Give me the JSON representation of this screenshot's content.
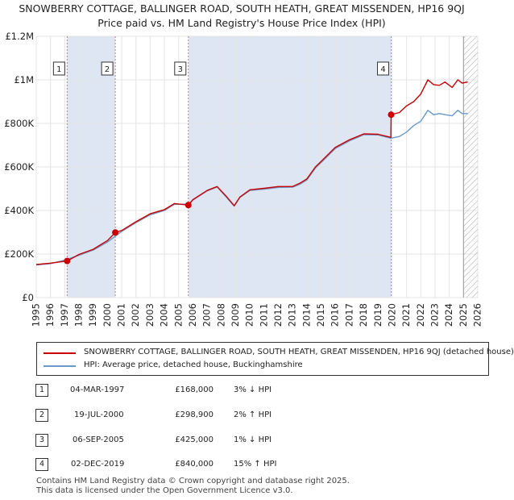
{
  "header": {
    "title": "SNOWBERRY COTTAGE, BALLINGER ROAD, SOUTH HEATH, GREAT MISSENDEN, HP16 9QJ",
    "subtitle": "Price paid vs. HM Land Registry's House Price Index (HPI)"
  },
  "chart_data": {
    "type": "line",
    "title": "SNOWBERRY COTTAGE, BALLINGER ROAD, SOUTH HEATH, GREAT MISSENDEN, HP16 9QJ",
    "subtitle": "Price paid vs. HM Land Registry's House Price Index (HPI)",
    "xlabel": "",
    "ylabel": "",
    "xlim": [
      1995,
      2026
    ],
    "ylim": [
      0,
      1200000
    ],
    "x_ticks": [
      "1995",
      "1996",
      "1997",
      "1998",
      "1999",
      "2000",
      "2001",
      "2002",
      "2003",
      "2004",
      "2005",
      "2006",
      "2007",
      "2008",
      "2009",
      "2010",
      "2011",
      "2012",
      "2013",
      "2014",
      "2015",
      "2016",
      "2017",
      "2018",
      "2019",
      "2020",
      "2021",
      "2022",
      "2023",
      "2024",
      "2025",
      "2026"
    ],
    "y_ticks": [
      {
        "value": 0,
        "label": "£0"
      },
      {
        "value": 200000,
        "label": "£200K"
      },
      {
        "value": 400000,
        "label": "£400K"
      },
      {
        "value": 600000,
        "label": "£600K"
      },
      {
        "value": 800000,
        "label": "£800K"
      },
      {
        "value": 1000000,
        "label": "£1M"
      },
      {
        "value": 1200000,
        "label": "£1.2M"
      }
    ],
    "grid": true,
    "hatched_from": 2025.0,
    "colors": {
      "property": "#cc0000",
      "hpi": "#6699cc",
      "shade": "#dde6f2",
      "marker_line": "#e07070"
    },
    "shaded_ranges": [
      [
        1997.17,
        2000.55
      ],
      [
        2005.68,
        2019.92
      ]
    ],
    "series": [
      {
        "name": "SNOWBERRY COTTAGE, BALLINGER ROAD, SOUTH HEATH, GREAT MISSENDEN, HP16 9QJ (detached house)",
        "color": "#cc0000",
        "x": [
          1995.0,
          1996.0,
          1997.17,
          1998.0,
          1999.0,
          2000.0,
          2000.55,
          2001.0,
          2002.0,
          2003.0,
          2004.0,
          2004.7,
          2005.68,
          2006.0,
          2007.0,
          2007.7,
          2008.3,
          2008.9,
          2009.3,
          2010.0,
          2011.0,
          2012.0,
          2013.0,
          2013.5,
          2014.0,
          2014.6,
          2015.0,
          2016.0,
          2017.0,
          2018.0,
          2019.0,
          2019.9,
          2019.92,
          2020.5,
          2021.0,
          2021.5,
          2022.0,
          2022.5,
          2022.9,
          2023.3,
          2023.7,
          2024.2,
          2024.6,
          2024.9,
          2025.3
        ],
        "y": [
          152000,
          158000,
          168000,
          198000,
          222000,
          262000,
          298900,
          308000,
          348000,
          385000,
          404000,
          432000,
          425000,
          450000,
          492000,
          510000,
          468000,
          422000,
          462000,
          495000,
          502000,
          510000,
          510000,
          525000,
          545000,
          600000,
          625000,
          690000,
          725000,
          752000,
          750000,
          736000,
          840000,
          850000,
          880000,
          900000,
          935000,
          1000000,
          978000,
          975000,
          990000,
          965000,
          1000000,
          985000,
          990000
        ]
      },
      {
        "name": "HPI: Average price, detached house, Buckinghamshire",
        "color": "#6699cc",
        "x": [
          1995.0,
          1996.0,
          1997.0,
          1998.0,
          1999.0,
          2000.0,
          2001.0,
          2002.0,
          2003.0,
          2004.0,
          2004.7,
          2005.7,
          2006.0,
          2007.0,
          2007.7,
          2008.3,
          2008.9,
          2009.3,
          2010.0,
          2011.0,
          2012.0,
          2013.0,
          2013.5,
          2014.0,
          2014.6,
          2015.0,
          2016.0,
          2017.0,
          2018.0,
          2019.0,
          2019.9,
          2020.5,
          2021.0,
          2021.5,
          2022.0,
          2022.5,
          2022.9,
          2023.3,
          2023.7,
          2024.2,
          2024.6,
          2024.9,
          2025.3
        ],
        "y": [
          150000,
          156000,
          172000,
          194000,
          218000,
          255000,
          304000,
          344000,
          380000,
          400000,
          428000,
          430000,
          448000,
          490000,
          508000,
          465000,
          420000,
          460000,
          492000,
          498000,
          506000,
          507000,
          520000,
          540000,
          595000,
          620000,
          685000,
          720000,
          748000,
          747000,
          732000,
          740000,
          760000,
          790000,
          810000,
          860000,
          840000,
          845000,
          840000,
          835000,
          860000,
          845000,
          845000
        ]
      }
    ],
    "transactions": [
      {
        "id": "1",
        "date": "04-MAR-1997",
        "x": 1997.17,
        "price": 168000,
        "price_label": "£168,000",
        "hpi_change": "3% ↓ HPI"
      },
      {
        "id": "2",
        "date": "19-JUL-2000",
        "x": 2000.55,
        "price": 298900,
        "price_label": "£298,900",
        "hpi_change": "2% ↑ HPI"
      },
      {
        "id": "3",
        "date": "06-SEP-2005",
        "x": 2005.68,
        "price": 425000,
        "price_label": "£425,000",
        "hpi_change": "1% ↓ HPI"
      },
      {
        "id": "4",
        "date": "02-DEC-2019",
        "x": 2019.92,
        "price": 840000,
        "price_label": "£840,000",
        "hpi_change": "15% ↑ HPI"
      }
    ]
  },
  "legend": {
    "property_label": "SNOWBERRY COTTAGE, BALLINGER ROAD, SOUTH HEATH, GREAT MISSENDEN, HP16 9QJ (detached house)",
    "hpi_label": "HPI: Average price, detached house, Buckinghamshire"
  },
  "footer": {
    "line1": "Contains HM Land Registry data © Crown copyright and database right 2025.",
    "line2": "This data is licensed under the Open Government Licence v3.0."
  }
}
